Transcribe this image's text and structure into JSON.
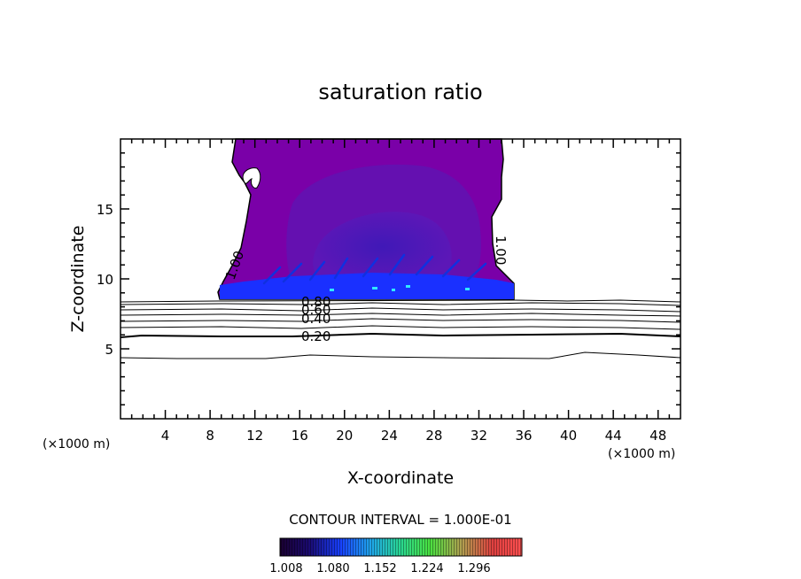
{
  "chart_data": {
    "type": "contour",
    "title": "saturation ratio",
    "xlabel": "X-coordinate",
    "ylabel": "Z-coordinate",
    "x_unit_left": "(×1000 m)",
    "x_unit_right": "(×1000 m)",
    "xlim": [
      0,
      50
    ],
    "ylim": [
      0,
      20
    ],
    "xticks": [
      4,
      8,
      12,
      16,
      20,
      24,
      28,
      32,
      36,
      40,
      44,
      48
    ],
    "yticks": [
      5,
      10,
      15
    ],
    "contour_interval_text": "CONTOUR INTERVAL = 1.000E-01",
    "colorbar_labels": [
      "1.008",
      "1.080",
      "1.152",
      "1.224",
      "1.296"
    ],
    "contour_labels": [
      {
        "text": "1.00",
        "x": 10.2,
        "y": 10.6
      },
      {
        "text": "1.00",
        "x": 33.3,
        "y": 11.5
      },
      {
        "text": "0.80",
        "x": 17.6,
        "y": 8.45
      },
      {
        "text": "0.60",
        "x": 17.6,
        "y": 7.95
      },
      {
        "text": "0.40",
        "x": 17.6,
        "y": 7.35
      },
      {
        "text": "0.20",
        "x": 17.6,
        "y": 5.95
      }
    ],
    "colors": {
      "cloud_outer": "#7a00a8",
      "cloud_inner": "#5a14b8",
      "cloud_core": "#3a1ab0",
      "cloud_base": "#1830ff"
    }
  }
}
